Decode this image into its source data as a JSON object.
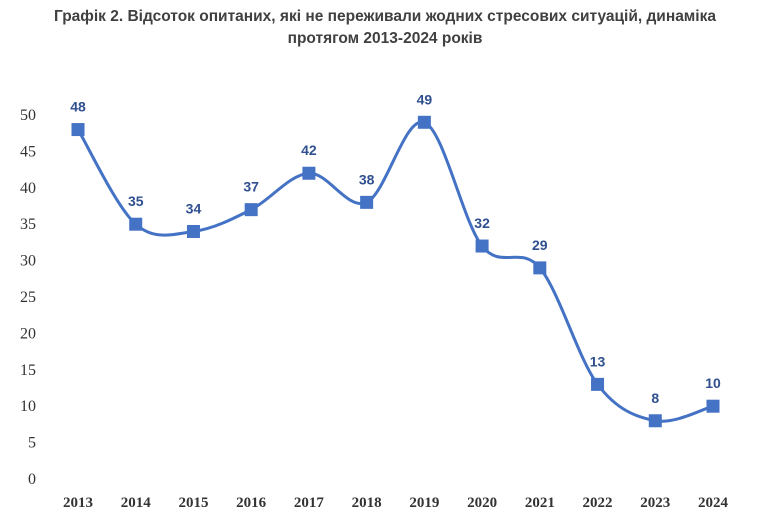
{
  "chart_data": {
    "type": "line",
    "title_line1": "Графік 2. Відсоток опитаних, які не переживали жодних стресових ситуацій, динаміка",
    "title_line2": "протягом 2013-2024 років",
    "categories": [
      "2013",
      "2014",
      "2015",
      "2016",
      "2017",
      "2018",
      "2019",
      "2020",
      "2021",
      "2022",
      "2023",
      "2024"
    ],
    "values": [
      48,
      35,
      34,
      37,
      42,
      38,
      49,
      32,
      29,
      13,
      8,
      10
    ],
    "ylim": [
      0,
      50
    ],
    "yticks": [
      0,
      5,
      10,
      15,
      20,
      25,
      30,
      35,
      40,
      45,
      50
    ],
    "grid": false,
    "smooth": true,
    "series_color": "#4472c4",
    "label_color": "#2f4f8f"
  }
}
